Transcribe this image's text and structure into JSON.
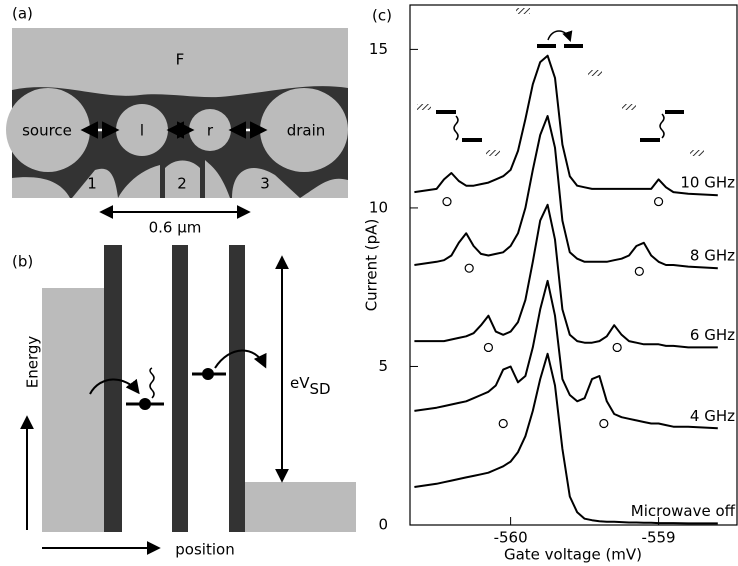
{
  "diagram_a": {
    "panel_label": "(a)",
    "top_gate": "F",
    "source": "source",
    "left_dot": "l",
    "right_dot": "r",
    "drain": "drain",
    "gates": [
      "1",
      "2",
      "3"
    ],
    "scale": "0.6 μm"
  },
  "diagram_b": {
    "panel_label": "(b)",
    "y_label": "Energy",
    "x_label": "position",
    "bias_label": {
      "main": "eV",
      "sub": "SD"
    }
  },
  "chart_data": {
    "type": "line",
    "panel_label": "(c)",
    "x_label": "Gate voltage  (mV)",
    "y_label": "Current  (pA)",
    "xlim": [
      -560.68,
      -558.47
    ],
    "ylim": [
      0,
      16.4
    ],
    "xticks": [
      -560,
      -559
    ],
    "yticks": [
      0,
      5,
      10,
      15
    ],
    "x": [
      -560.65,
      -560.5,
      -560.45,
      -560.4,
      -560.35,
      -560.3,
      -560.25,
      -560.2,
      -560.15,
      -560.1,
      -560.05,
      -560.0,
      -559.95,
      -559.9,
      -559.85,
      -559.8,
      -559.75,
      -559.7,
      -559.65,
      -559.6,
      -559.55,
      -559.5,
      -559.45,
      -559.4,
      -559.35,
      -559.3,
      -559.25,
      -559.2,
      -559.15,
      -559.1,
      -559.05,
      -559.0,
      -558.95,
      -558.9,
      -558.8,
      -558.6
    ],
    "series": [
      {
        "name": "Microwave off",
        "color": "#000000",
        "values": [
          1.2,
          1.3,
          1.35,
          1.4,
          1.45,
          1.5,
          1.55,
          1.6,
          1.65,
          1.75,
          1.85,
          2.0,
          2.3,
          2.8,
          3.6,
          4.6,
          5.4,
          4.4,
          2.4,
          0.9,
          0.4,
          0.2,
          0.15,
          0.12,
          0.1,
          0.1,
          0.09,
          0.08,
          0.08,
          0.07,
          0.07,
          0.06,
          0.06,
          0.06,
          0.05,
          0.05
        ],
        "markers": []
      },
      {
        "name": "4 GHz",
        "color": "#000000",
        "values": [
          3.6,
          3.7,
          3.75,
          3.8,
          3.85,
          3.9,
          4.0,
          4.1,
          4.2,
          4.4,
          4.9,
          5.0,
          4.5,
          4.7,
          5.6,
          6.8,
          7.7,
          6.6,
          4.6,
          4.1,
          3.9,
          4.0,
          4.6,
          4.7,
          3.9,
          3.5,
          3.4,
          3.35,
          3.3,
          3.25,
          3.2,
          3.2,
          3.15,
          3.1,
          3.1,
          3.05
        ],
        "markers": [
          [
            -560.05,
            3.2
          ],
          [
            -559.37,
            3.2
          ]
        ]
      },
      {
        "name": "6 GHz",
        "color": "#000000",
        "values": [
          5.8,
          5.8,
          5.8,
          5.85,
          5.9,
          5.95,
          6.05,
          6.3,
          6.6,
          6.1,
          6.0,
          6.1,
          6.4,
          7.1,
          8.3,
          9.6,
          10.1,
          9.0,
          6.8,
          6.0,
          5.8,
          5.75,
          5.75,
          5.8,
          5.95,
          6.3,
          6.0,
          5.8,
          5.75,
          5.7,
          5.7,
          5.7,
          5.65,
          5.65,
          5.6,
          5.6
        ],
        "markers": [
          [
            -560.15,
            5.6
          ],
          [
            -559.28,
            5.6
          ]
        ]
      },
      {
        "name": "8 GHz",
        "color": "#000000",
        "values": [
          8.2,
          8.3,
          8.35,
          8.5,
          8.9,
          9.2,
          8.8,
          8.55,
          8.5,
          8.55,
          8.6,
          8.8,
          9.2,
          10.0,
          11.2,
          12.3,
          12.9,
          11.9,
          9.6,
          8.6,
          8.4,
          8.3,
          8.3,
          8.3,
          8.3,
          8.35,
          8.4,
          8.5,
          8.8,
          8.9,
          8.5,
          8.3,
          8.2,
          8.2,
          8.15,
          8.1
        ],
        "markers": [
          [
            -560.28,
            8.1
          ],
          [
            -559.13,
            8.0
          ]
        ]
      },
      {
        "name": "10 GHz",
        "color": "#000000",
        "values": [
          10.5,
          10.6,
          10.9,
          11.1,
          10.85,
          10.7,
          10.7,
          10.75,
          10.8,
          10.9,
          11.0,
          11.2,
          11.8,
          12.8,
          13.9,
          14.6,
          14.8,
          14.1,
          12.0,
          11.0,
          10.7,
          10.65,
          10.6,
          10.6,
          10.6,
          10.6,
          10.6,
          10.6,
          10.6,
          10.6,
          10.6,
          10.9,
          10.65,
          10.5,
          10.45,
          10.4
        ],
        "markers": [
          [
            -560.43,
            10.2
          ],
          [
            -559.0,
            10.2
          ]
        ]
      }
    ]
  }
}
